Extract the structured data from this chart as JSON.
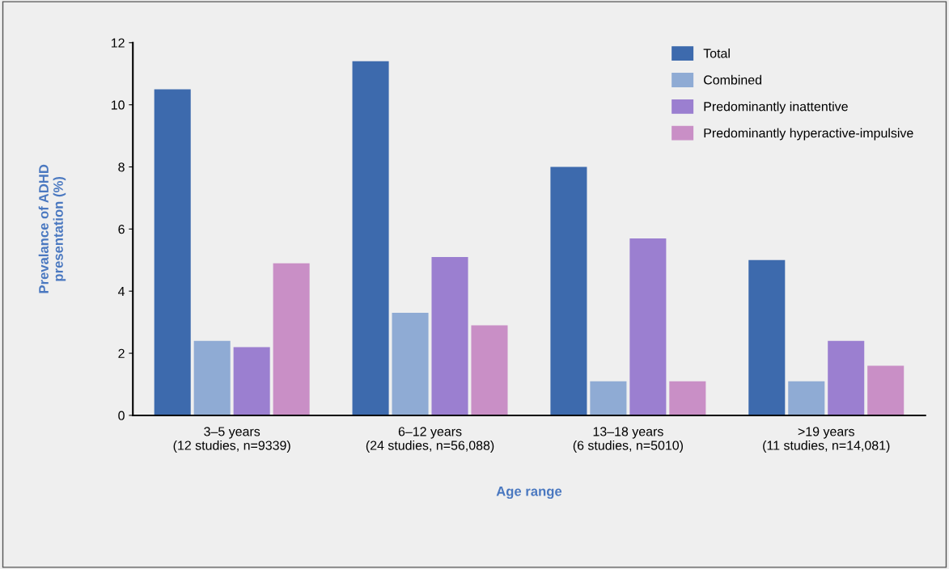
{
  "chart_data": {
    "type": "bar",
    "xlabel": "Age range",
    "ylabel": "Prevalance of ADHD\npresentation (%)",
    "categories": [
      "3–5 years\n(12 studies, n=9339)",
      "6–12 years\n(24 studies, n=56,088)",
      "13–18 years\n(6 studies, n=5010)",
      ">19 years\n(11 studies, n=14,081)"
    ],
    "series": [
      {
        "name": "Total",
        "color": "#3d6aad",
        "values": [
          10.5,
          11.4,
          8.0,
          5.0
        ]
      },
      {
        "name": "Combined",
        "color": "#8fabd4",
        "values": [
          2.4,
          3.3,
          1.1,
          1.1
        ]
      },
      {
        "name": "Predominantly inattentive",
        "color": "#9b7fd0",
        "values": [
          2.2,
          5.1,
          5.7,
          2.4
        ]
      },
      {
        "name": "Predominantly hyperactive-impulsive",
        "color": "#c98fc6",
        "values": [
          4.9,
          2.9,
          1.1,
          1.6
        ]
      }
    ],
    "ylim": [
      0,
      12
    ],
    "yticks": [
      0,
      2,
      4,
      6,
      8,
      10,
      12
    ],
    "grid": false,
    "legend": "top right"
  }
}
